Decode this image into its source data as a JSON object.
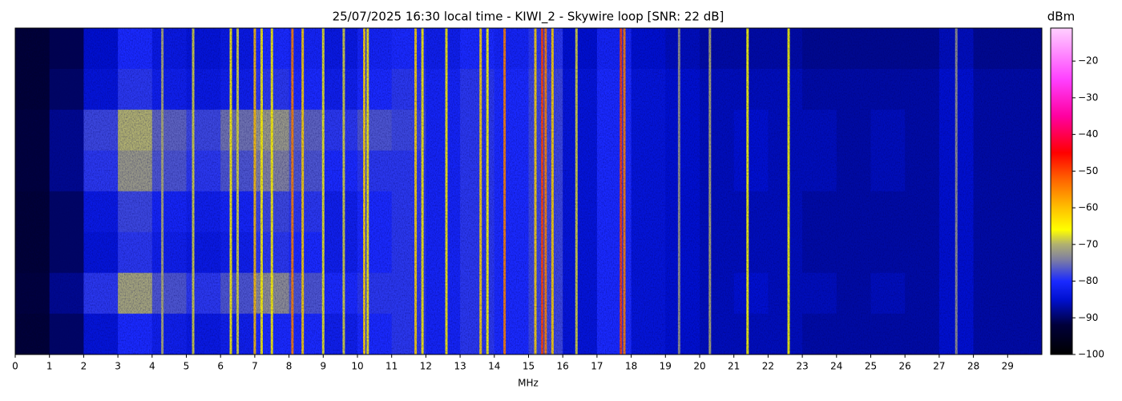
{
  "chart_data": {
    "type": "heatmap",
    "title": "25/07/2025 16:30 local time - KIWI_2 - Skywire loop [SNR: 22 dB]",
    "x_label": "MHz",
    "colorbar_label": "dBm",
    "xlim": [
      0,
      30
    ],
    "xticks": [
      0,
      1,
      2,
      3,
      4,
      5,
      6,
      7,
      8,
      9,
      10,
      11,
      12,
      13,
      14,
      15,
      16,
      17,
      18,
      19,
      20,
      21,
      22,
      23,
      24,
      25,
      26,
      27,
      28,
      29
    ],
    "xbins": [
      0,
      1,
      2,
      3,
      4,
      5,
      6,
      7,
      8,
      9,
      10,
      11,
      12,
      13,
      14,
      15,
      16,
      17,
      18,
      19,
      20,
      21,
      22,
      23,
      24,
      25,
      26,
      27,
      28,
      29,
      30
    ],
    "z": [
      [
        -93,
        -91,
        -85,
        -80,
        -83,
        -84,
        -83,
        -80,
        -81,
        -83,
        -81,
        -80,
        -82,
        -80,
        -81,
        -79,
        -85,
        -81,
        -85,
        -86,
        -87,
        -87,
        -87,
        -88,
        -88,
        -88,
        -88,
        -86,
        -88,
        -88
      ],
      [
        -93,
        -90,
        -84,
        -79,
        -82,
        -83,
        -82,
        -79,
        -80,
        -82,
        -80,
        -79,
        -81,
        -79,
        -80,
        -78,
        -84,
        -80,
        -84,
        -85,
        -86,
        -86,
        -86,
        -87,
        -87,
        -87,
        -87,
        -85,
        -87,
        -87
      ],
      [
        -92,
        -88,
        -78,
        -70,
        -76,
        -78,
        -75,
        -72,
        -76,
        -79,
        -77,
        -78,
        -81,
        -79,
        -80,
        -78,
        -84,
        -80,
        -84,
        -85,
        -86,
        -85,
        -86,
        -86,
        -87,
        -86,
        -87,
        -85,
        -87,
        -87
      ],
      [
        -92,
        -88,
        -79,
        -72,
        -77,
        -79,
        -77,
        -74,
        -77,
        -80,
        -79,
        -79,
        -81,
        -79,
        -80,
        -78,
        -84,
        -80,
        -84,
        -85,
        -86,
        -85,
        -86,
        -86,
        -87,
        -86,
        -87,
        -85,
        -87,
        -87
      ],
      [
        -93,
        -90,
        -83,
        -78,
        -81,
        -82,
        -81,
        -78,
        -79,
        -82,
        -80,
        -79,
        -81,
        -79,
        -80,
        -78,
        -84,
        -80,
        -84,
        -85,
        -86,
        -86,
        -86,
        -87,
        -87,
        -87,
        -87,
        -85,
        -87,
        -87
      ],
      [
        -93,
        -90,
        -84,
        -79,
        -82,
        -83,
        -82,
        -79,
        -80,
        -82,
        -80,
        -79,
        -81,
        -79,
        -80,
        -78,
        -84,
        -80,
        -84,
        -85,
        -86,
        -86,
        -86,
        -87,
        -87,
        -87,
        -87,
        -85,
        -87,
        -87
      ],
      [
        -92,
        -88,
        -79,
        -71,
        -77,
        -79,
        -77,
        -73,
        -77,
        -80,
        -79,
        -79,
        -81,
        -79,
        -80,
        -78,
        -84,
        -80,
        -84,
        -85,
        -86,
        -85,
        -86,
        -86,
        -87,
        -86,
        -87,
        -85,
        -87,
        -87
      ],
      [
        -93,
        -90,
        -84,
        -80,
        -82,
        -83,
        -82,
        -80,
        -80,
        -82,
        -80,
        -79,
        -81,
        -79,
        -80,
        -78,
        -84,
        -80,
        -84,
        -85,
        -86,
        -86,
        -86,
        -87,
        -87,
        -87,
        -87,
        -85,
        -87,
        -87
      ]
    ],
    "signals": {
      "freqs": [
        4.3,
        5.2,
        6.3,
        6.5,
        7.0,
        7.2,
        7.5,
        8.1,
        8.4,
        9.0,
        9.6,
        10.2,
        10.3,
        11.7,
        11.9,
        12.6,
        13.6,
        13.8,
        14.3,
        15.2,
        15.4,
        15.5,
        15.7,
        16.4,
        17.7,
        17.8,
        19.4,
        20.3,
        21.4,
        22.6,
        27.5
      ],
      "levels": [
        -70,
        -68,
        -65,
        -68,
        -60,
        -65,
        -65,
        -55,
        -62,
        -67,
        -68,
        -62,
        -65,
        -62,
        -65,
        -65,
        -62,
        -66,
        -55,
        -62,
        -50,
        -55,
        -62,
        -68,
        -50,
        -55,
        -72,
        -70,
        -66,
        -66,
        -72
      ]
    },
    "clim": [
      -100,
      -11
    ],
    "colorscale": [
      [
        -100,
        "#000000"
      ],
      [
        -92,
        "#00003a"
      ],
      [
        -85,
        "#0010d0"
      ],
      [
        -80,
        "#1a2aff"
      ],
      [
        -74,
        "#8080a0"
      ],
      [
        -70,
        "#b0b070"
      ],
      [
        -66,
        "#ffff00"
      ],
      [
        -60,
        "#ffc000"
      ],
      [
        -52,
        "#ff6000"
      ],
      [
        -45,
        "#ff0000"
      ],
      [
        -35,
        "#ff00a0"
      ],
      [
        -25,
        "#ff40ff"
      ],
      [
        -11,
        "#ffd0ff"
      ]
    ],
    "cticks": [
      {
        "value": -100,
        "label": "−100"
      },
      {
        "value": -90,
        "label": "−90"
      },
      {
        "value": -80,
        "label": "−80"
      },
      {
        "value": -70,
        "label": "−70"
      },
      {
        "value": -60,
        "label": "−60"
      },
      {
        "value": -50,
        "label": "−50"
      },
      {
        "value": -40,
        "label": "−40"
      },
      {
        "value": -30,
        "label": "−30"
      },
      {
        "value": -20,
        "label": "−20"
      }
    ]
  }
}
